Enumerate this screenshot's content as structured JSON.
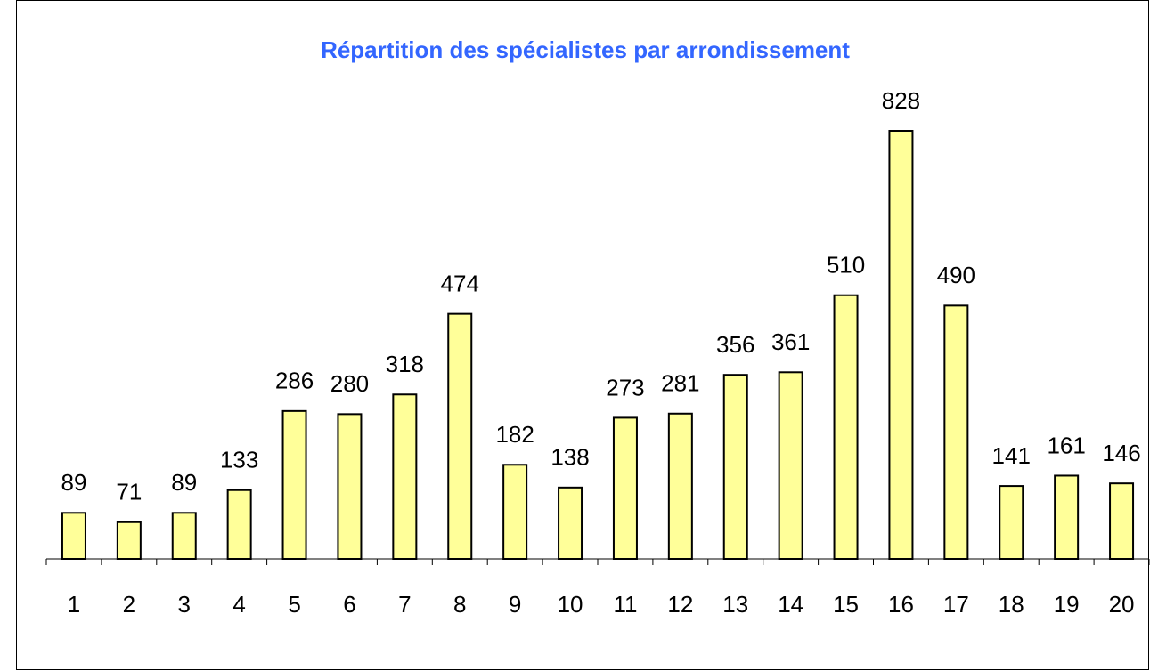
{
  "chart_data": {
    "type": "bar",
    "title": "Répartition des spécialistes par arrondissement",
    "categories": [
      "1",
      "2",
      "3",
      "4",
      "5",
      "6",
      "7",
      "8",
      "9",
      "10",
      "11",
      "12",
      "13",
      "14",
      "15",
      "16",
      "17",
      "18",
      "19",
      "20"
    ],
    "values": [
      89,
      71,
      89,
      133,
      286,
      280,
      318,
      474,
      182,
      138,
      273,
      281,
      356,
      361,
      510,
      828,
      490,
      141,
      161,
      146
    ],
    "color": "#ffff99"
  }
}
